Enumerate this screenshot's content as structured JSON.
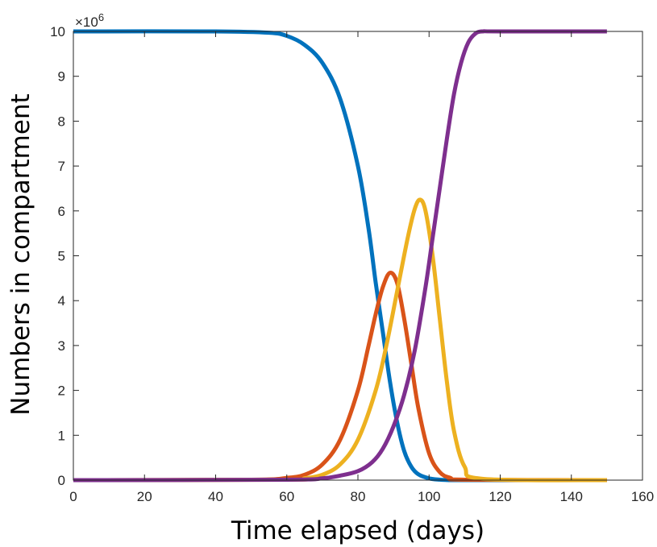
{
  "chart_data": {
    "type": "line",
    "title": "",
    "xlabel": "Time elapsed (days)",
    "ylabel": "Numbers in compartment",
    "y_exponent_label": "×10",
    "y_exponent_power": "6",
    "xlim": [
      0,
      160
    ],
    "ylim": [
      0,
      10
    ],
    "x_ticks": [
      0,
      20,
      40,
      60,
      80,
      100,
      120,
      140,
      160
    ],
    "y_ticks": [
      0,
      1,
      2,
      3,
      4,
      5,
      6,
      7,
      8,
      9,
      10
    ],
    "x_tick_labels": [
      "0",
      "20",
      "40",
      "60",
      "80",
      "100",
      "120",
      "140",
      "160"
    ],
    "y_tick_labels": [
      "0",
      "1",
      "2",
      "3",
      "4",
      "5",
      "6",
      "7",
      "8",
      "9",
      "10"
    ],
    "grid": false,
    "legend": "none",
    "series": [
      {
        "color": "#0072BD",
        "x": [
          0,
          40,
          55,
          60,
          65,
          70,
          75,
          80,
          83,
          85,
          87,
          89,
          91,
          93,
          95,
          97,
          100,
          103,
          105,
          110,
          150
        ],
        "y": [
          10,
          10,
          9.97,
          9.9,
          9.7,
          9.3,
          8.5,
          7.0,
          5.6,
          4.4,
          3.3,
          2.2,
          1.3,
          0.65,
          0.3,
          0.13,
          0.04,
          0.01,
          0.003,
          0,
          0
        ]
      },
      {
        "color": "#D95319",
        "x": [
          0,
          50,
          60,
          65,
          70,
          75,
          80,
          83,
          85,
          87,
          89,
          91,
          93,
          95,
          97,
          100,
          103,
          106,
          110,
          150
        ],
        "y": [
          0,
          0.01,
          0.05,
          0.12,
          0.35,
          0.9,
          2.0,
          3.0,
          3.7,
          4.3,
          4.62,
          4.4,
          3.6,
          2.6,
          1.6,
          0.6,
          0.18,
          0.05,
          0.01,
          0
        ]
      },
      {
        "color": "#EDB120",
        "x": [
          0,
          60,
          65,
          70,
          75,
          80,
          85,
          88,
          91,
          94,
          96,
          97.5,
          99,
          101,
          103,
          105,
          107,
          110,
          115,
          150
        ],
        "y": [
          0,
          0.01,
          0.04,
          0.12,
          0.35,
          0.9,
          2.0,
          3.0,
          4.2,
          5.4,
          6.05,
          6.25,
          6.0,
          5.0,
          3.6,
          2.2,
          1.1,
          0.3,
          0.03,
          0
        ]
      },
      {
        "color": "#7E2F8E",
        "x": [
          0,
          60,
          70,
          75,
          80,
          84,
          87,
          90,
          93,
          96,
          99,
          101,
          103,
          105,
          107,
          109,
          111,
          113,
          115,
          120,
          150
        ],
        "y": [
          0,
          0.01,
          0.04,
          0.1,
          0.2,
          0.4,
          0.7,
          1.2,
          1.9,
          2.9,
          4.3,
          5.4,
          6.5,
          7.6,
          8.6,
          9.3,
          9.75,
          9.95,
          10,
          10,
          10
        ]
      }
    ]
  }
}
